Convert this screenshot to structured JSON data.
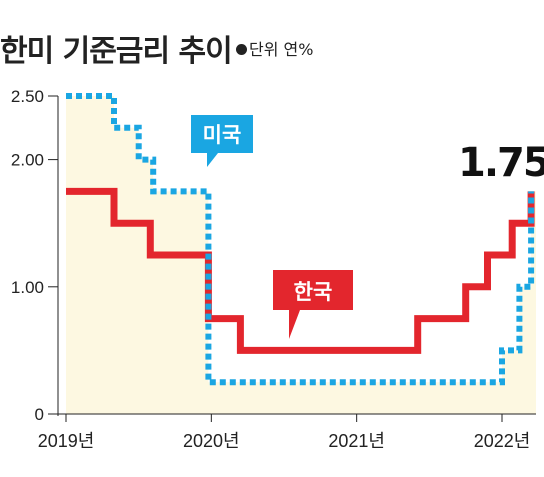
{
  "title": "한미 기준금리 추이",
  "unit": "단위 연%",
  "colors": {
    "korea": "#e3262d",
    "us": "#1aa6e2",
    "area": "#fdf8e1",
    "axis": "#222222"
  },
  "chart_data": {
    "type": "line",
    "title": "한미 기준금리 추이",
    "ylabel": "",
    "xlabel": "",
    "ylim": [
      0,
      2.5
    ],
    "y_ticks": [
      "0",
      "1.00",
      "2.00",
      "2.50"
    ],
    "x_ticks": [
      "2019년",
      "2020년",
      "2021년",
      "2022년"
    ],
    "x_tick_values": [
      2019,
      2020,
      2021,
      2022
    ],
    "xlim": [
      2019.0,
      2022.25
    ],
    "series": [
      {
        "name": "한국",
        "style": "solid",
        "points": [
          [
            2019.0,
            1.75
          ],
          [
            2019.33,
            1.75
          ],
          [
            2019.33,
            1.5
          ],
          [
            2019.58,
            1.5
          ],
          [
            2019.58,
            1.25
          ],
          [
            2019.98,
            1.25
          ],
          [
            2019.98,
            0.75
          ],
          [
            2020.2,
            0.75
          ],
          [
            2020.2,
            0.5
          ],
          [
            2021.42,
            0.5
          ],
          [
            2021.42,
            0.75
          ],
          [
            2021.75,
            0.75
          ],
          [
            2021.75,
            1.0
          ],
          [
            2021.9,
            1.0
          ],
          [
            2021.9,
            1.25
          ],
          [
            2022.07,
            1.25
          ],
          [
            2022.07,
            1.5
          ],
          [
            2022.2,
            1.5
          ],
          [
            2022.2,
            1.75
          ]
        ]
      },
      {
        "name": "미국",
        "style": "dotted",
        "points": [
          [
            2019.0,
            2.5
          ],
          [
            2019.33,
            2.5
          ],
          [
            2019.33,
            2.25
          ],
          [
            2019.5,
            2.25
          ],
          [
            2019.5,
            2.0
          ],
          [
            2019.6,
            2.0
          ],
          [
            2019.6,
            1.75
          ],
          [
            2019.98,
            1.75
          ],
          [
            2019.98,
            0.25
          ],
          [
            2022.0,
            0.25
          ],
          [
            2022.0,
            0.5
          ],
          [
            2022.12,
            0.5
          ],
          [
            2022.12,
            1.0
          ],
          [
            2022.2,
            1.0
          ],
          [
            2022.2,
            1.75
          ]
        ]
      }
    ],
    "annotations": [
      {
        "text": "미국",
        "series": "미국"
      },
      {
        "text": "한국",
        "series": "한국"
      },
      {
        "text": "1.75",
        "series": "한국"
      }
    ]
  }
}
